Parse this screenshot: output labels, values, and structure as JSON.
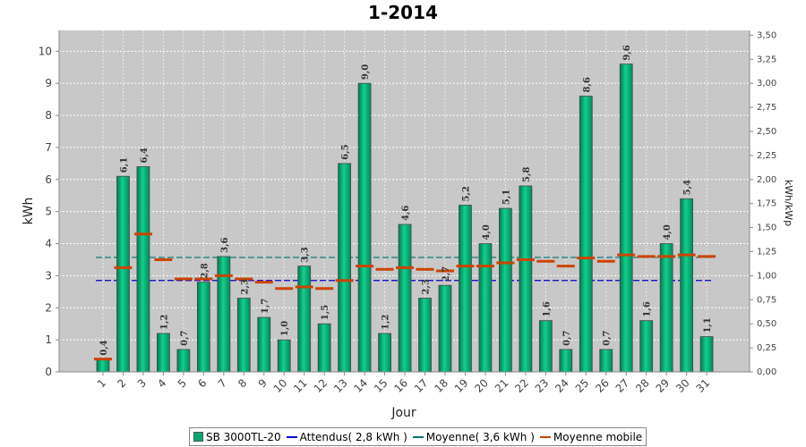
{
  "chart_data": {
    "type": "bar",
    "title": "1-2014",
    "xlabel": "Jour",
    "ylabel": "kWh",
    "y2label": "kWh/kWp",
    "ylim": [
      0,
      10.65
    ],
    "y2lim": [
      0,
      3.55
    ],
    "yticks": [
      "0",
      "1",
      "2",
      "3",
      "4",
      "5",
      "6",
      "7",
      "8",
      "9",
      "10"
    ],
    "y2ticks": [
      "0,00",
      "0,25",
      "0,50",
      "0,75",
      "1,00",
      "1,25",
      "1,50",
      "1,75",
      "2,00",
      "2,25",
      "2,50",
      "2,75",
      "3,00",
      "3,25",
      "3,50"
    ],
    "categories": [
      "1",
      "2",
      "3",
      "4",
      "5",
      "6",
      "7",
      "8",
      "9",
      "10",
      "11",
      "12",
      "13",
      "14",
      "15",
      "16",
      "17",
      "18",
      "19",
      "20",
      "21",
      "22",
      "23",
      "24",
      "25",
      "26",
      "27",
      "28",
      "29",
      "30",
      "31"
    ],
    "series": [
      {
        "name": "SB 3000TL-20",
        "color": "#00a870",
        "values": [
          0.4,
          6.1,
          6.4,
          1.2,
          0.7,
          2.8,
          3.6,
          2.3,
          1.7,
          1.0,
          3.3,
          1.5,
          6.5,
          9.0,
          1.2,
          4.6,
          2.3,
          2.7,
          5.2,
          4.0,
          5.1,
          5.8,
          1.6,
          0.7,
          8.6,
          0.7,
          9.6,
          1.6,
          4.0,
          5.4,
          1.1
        ],
        "labels": [
          "0,4",
          "6,1",
          "6,4",
          "1,2",
          "0,7",
          "2,8",
          "3,6",
          "2,3",
          "1,7",
          "1,0",
          "3,3",
          "1,5",
          "6,5",
          "9,0",
          "1,2",
          "4,6",
          "2,3",
          "2,7",
          "5,2",
          "4,0",
          "5,1",
          "5,8",
          "1,6",
          "0,7",
          "8,6",
          "0,7",
          "9,6",
          "1,6",
          "4,0",
          "5,4",
          "1,1"
        ]
      },
      {
        "name": "Moyenne mobile",
        "color": "#cc4400",
        "values": [
          0.4,
          3.25,
          4.3,
          3.5,
          2.9,
          2.9,
          3.0,
          2.9,
          2.8,
          2.6,
          2.65,
          2.6,
          2.85,
          3.3,
          3.2,
          3.25,
          3.2,
          3.15,
          3.3,
          3.3,
          3.4,
          3.5,
          3.45,
          3.3,
          3.55,
          3.45,
          3.65,
          3.6,
          3.6,
          3.65,
          3.6
        ]
      }
    ],
    "reference_lines": [
      {
        "name": "Attendus( 2,8 kWh )",
        "value": 2.85,
        "color": "#0000cc"
      },
      {
        "name": "Moyenne( 3,6 kWh )",
        "value": 3.57,
        "color": "#007070"
      }
    ],
    "legend": {
      "placement": "bottom",
      "items": [
        {
          "label": "SB 3000TL-20",
          "kind": "box",
          "color": "#00a870"
        },
        {
          "label": "Attendus( 2,8 kWh )",
          "kind": "line",
          "color": "#0000cc"
        },
        {
          "label": "Moyenne( 3,6 kWh )",
          "kind": "line",
          "color": "#007070"
        },
        {
          "label": "Moyenne mobile",
          "kind": "line",
          "color": "#cc4400"
        }
      ]
    },
    "grid": true,
    "plot_background": "#c8c8c8"
  }
}
